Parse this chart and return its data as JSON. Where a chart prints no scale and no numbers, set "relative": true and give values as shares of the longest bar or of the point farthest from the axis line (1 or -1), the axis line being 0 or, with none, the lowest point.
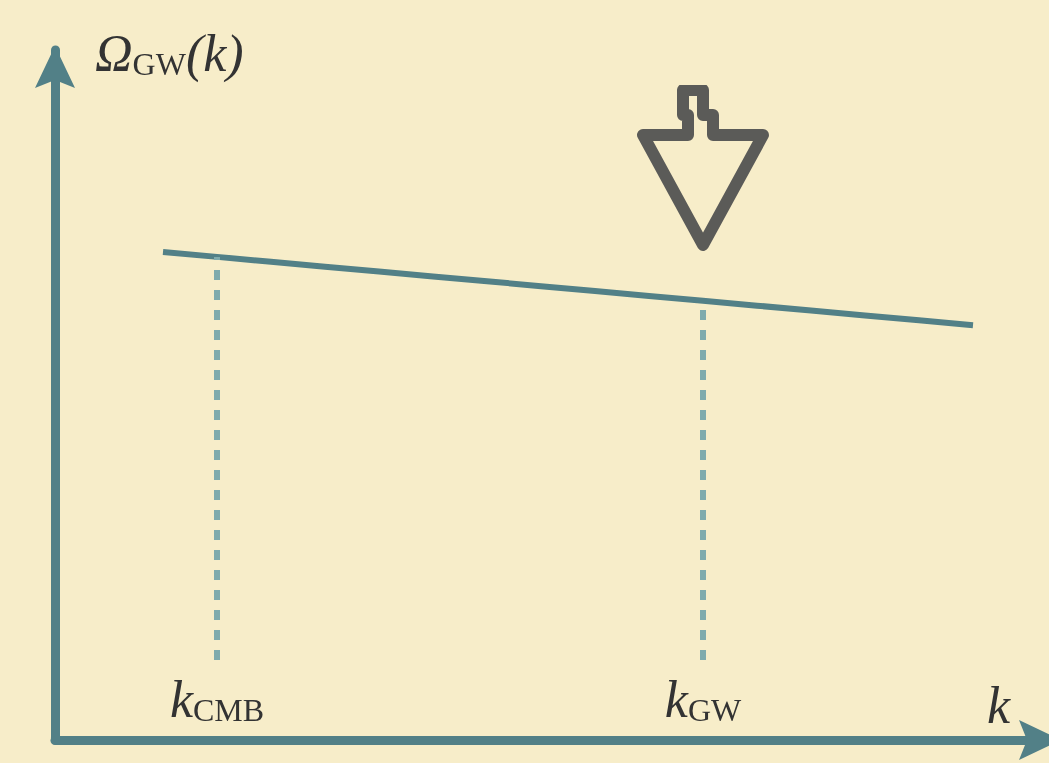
{
  "chart_data": {
    "type": "line",
    "relative": true,
    "xlabel": "k",
    "ylabel": "Ω$_{GW}$(k)",
    "categories": [
      null,
      null,
      null,
      "k$_{CMB}$",
      null,
      null,
      null,
      null,
      null,
      null,
      null,
      null,
      "k$_{GW}$",
      null,
      null,
      null,
      null,
      null,
      null
    ],
    "grid": false,
    "marker": "none",
    "line_style": "solid",
    "series": [
      {
        "color": "#528087",
        "values": [
          null,
          null,
          1,
          0.99,
          0.98,
          0.97,
          0.96,
          0.95,
          0.94,
          0.93,
          0.92,
          0.91,
          0.9,
          0.89,
          0.88,
          0.87,
          0.86,
          0.85,
          null
        ]
      }
    ],
    "ref_lines": [
      {
        "axis": "x",
        "value": "k$_{CMB}$",
        "color": "#7fabad",
        "line_style": "dashed"
      },
      {
        "axis": "x",
        "value": "k$_{GW}$",
        "color": "#7fabad",
        "line_style": "dashed"
      }
    ]
  }
}
